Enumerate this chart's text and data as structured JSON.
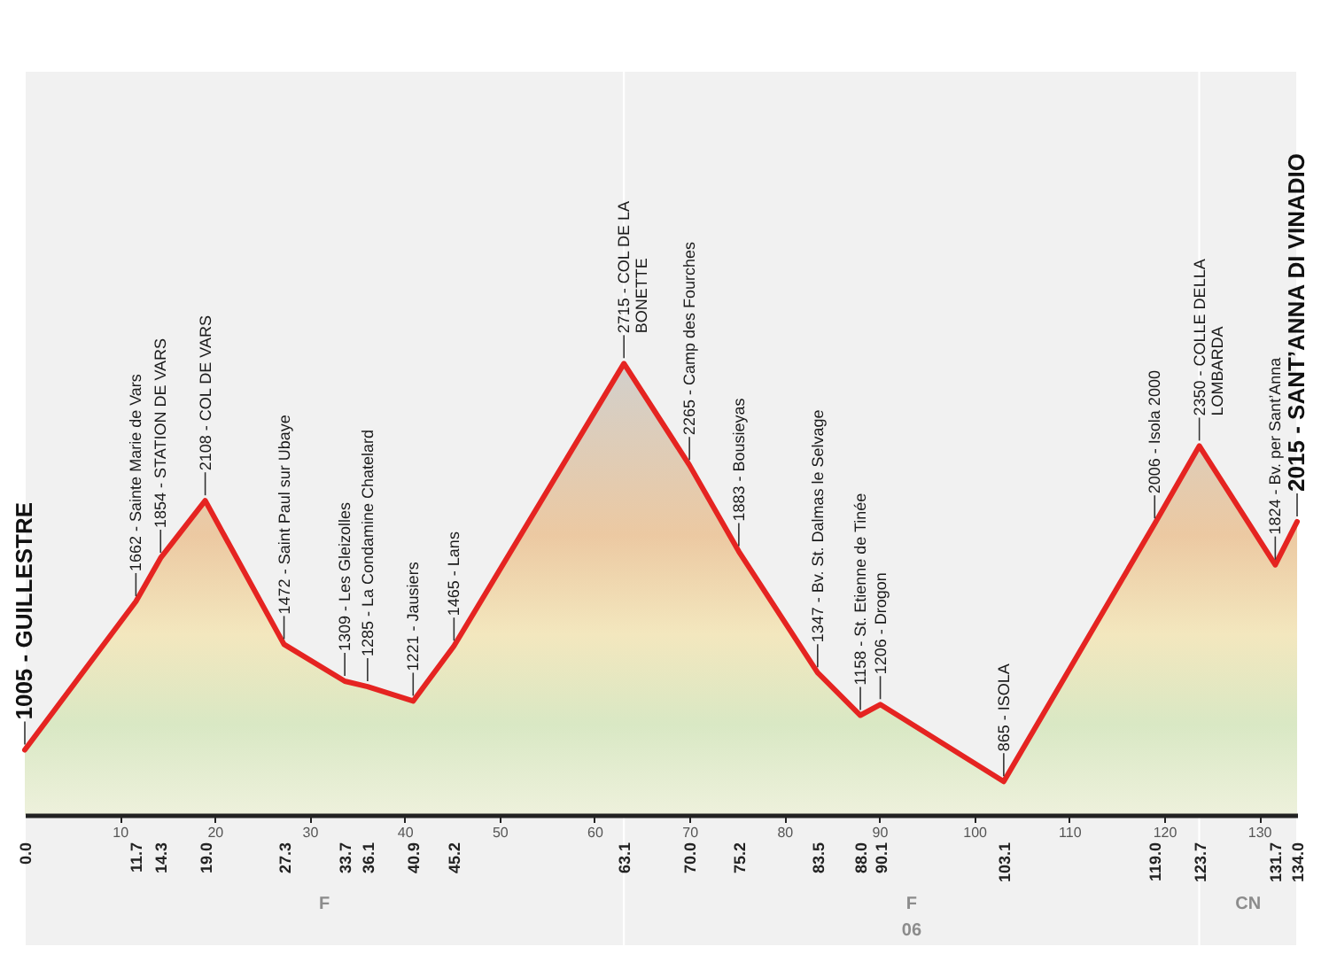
{
  "chart_data": {
    "type": "area",
    "color": "#e52421",
    "x": [
      0.0,
      11.7,
      14.3,
      19.0,
      27.3,
      33.7,
      36.1,
      40.9,
      45.2,
      63.1,
      70.0,
      75.2,
      83.5,
      88.0,
      90.1,
      103.1,
      119.0,
      123.7,
      131.7,
      134.0
    ],
    "values": [
      1005,
      1662,
      1854,
      2108,
      1472,
      1309,
      1285,
      1221,
      1465,
      2715,
      2265,
      1883,
      1347,
      1158,
      1206,
      865,
      2006,
      2350,
      1824,
      2015
    ],
    "value_labels": [
      "1005 - GUILLESTRE",
      "1662 - Sainte Marie de Vars",
      "1854 - STATION DE VARS",
      "2108 - COL DE VARS",
      "1472 - Saint Paul sur Ubaye",
      "1309 - Les Gleizolles",
      "1285 - La Condamine Chatelard",
      "1221 - Jausiers",
      "1465 - Lans",
      "2715 - COL DE LA\nBONETTE",
      "2265 - Camp des Fourches",
      "1883 - Bousieyas",
      "1347 - Bv. St. Dalmas le Selvage",
      "1158 - St. Etienne de Tinée",
      "1206 - Drogon",
      "865 - ISOLA",
      "2006 - Isola 2000",
      "2350 - COLLE DELLA\nLOMBARDA",
      "1824 - Bv. per Sant’Anna",
      "2015 - SANT’ANNA DI VINADIO"
    ],
    "xlim": [
      0,
      134
    ],
    "xticks": [
      10,
      20,
      30,
      40,
      50,
      60,
      70,
      80,
      90,
      100,
      110,
      120,
      130
    ],
    "x2lim": [
      0,
      134
    ],
    "x2ticks": [
      {
        "value": 0,
        "label": "0.0"
      },
      11.7,
      14.3,
      {
        "value": 19,
        "label": "19.0"
      },
      27.3,
      33.7,
      36.1,
      40.9,
      45.2,
      63.1,
      {
        "value": 70,
        "label": "70.0"
      },
      75.2,
      83.5,
      {
        "value": 88,
        "label": "88.0"
      },
      90.1,
      103.1,
      {
        "value": 119,
        "label": "119.0"
      },
      123.7,
      131.7,
      {
        "value": 134,
        "label": "134.0"
      }
    ],
    "tick_labels": "x",
    "bands": [
      {
        "axis": "x",
        "from": 0,
        "to": 63.1,
        "label": "F",
        "color": "#f1f1f1"
      },
      {
        "axis": "x",
        "from": 63.1,
        "to": 123.7,
        "label": "F\n06",
        "color": "#f1f1f1"
      },
      {
        "axis": "x",
        "from": 123.7,
        "to": 134.0,
        "label": "CN",
        "color": "#f1f1f1"
      }
    ]
  }
}
